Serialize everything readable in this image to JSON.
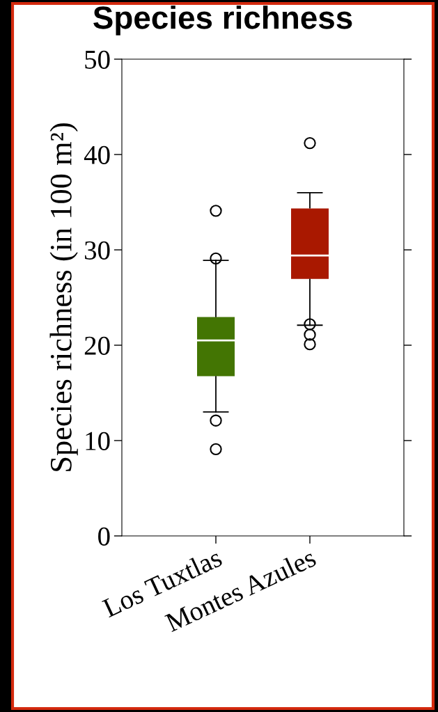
{
  "chart_data": {
    "type": "box",
    "title": "Species richness",
    "ylabel": "Species richness (in 100 m²)",
    "categories": [
      "Los Tuxtlas",
      "Montes Azules"
    ],
    "colors": [
      "#437503",
      "#a91800"
    ],
    "boxes": [
      {
        "low": 13.0,
        "q1": 16.7,
        "median": 20.5,
        "q3": 23.0,
        "high": 28.9,
        "outliers": [
          34.1,
          29.1,
          12.1,
          9.1
        ]
      },
      {
        "low": 22.1,
        "q1": 26.9,
        "median": 29.4,
        "q3": 34.4,
        "high": 36.0,
        "outliers": [
          41.2,
          22.2,
          21.1,
          20.1
        ]
      }
    ],
    "ylim": [
      0,
      50
    ],
    "yticks": [
      0,
      10,
      20,
      30,
      40,
      50
    ],
    "grid": false,
    "legend": false
  }
}
